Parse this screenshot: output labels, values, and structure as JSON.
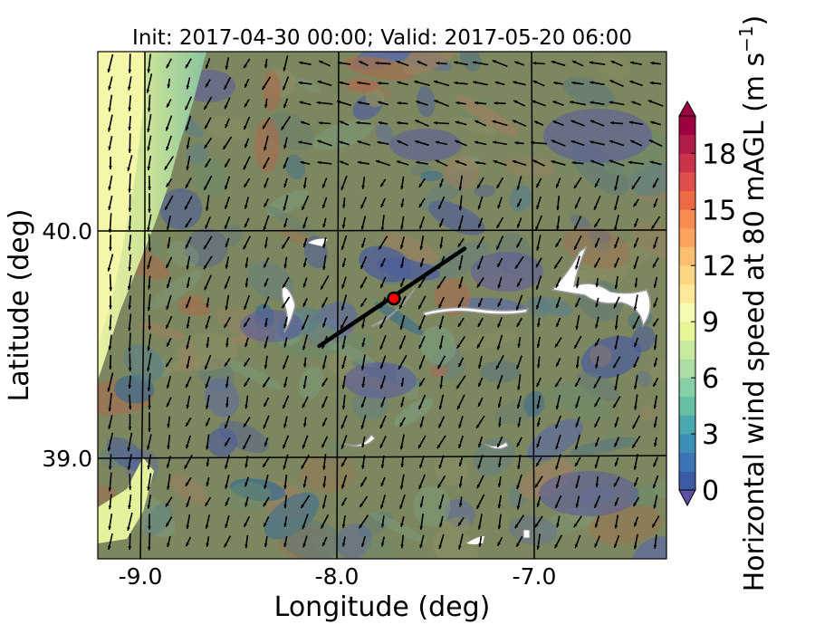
{
  "chart_data": {
    "type": "heatmap",
    "title": "Init: 2017-04-30 00:00; Valid: 2017-05-20 06:00",
    "xlabel": "Longitude (deg)",
    "ylabel": "Latitude (deg)",
    "xlim": [
      -9.25,
      -6.35
    ],
    "ylim": [
      38.55,
      40.79
    ],
    "x_ticks": [
      -9.0,
      -8.0,
      -7.0
    ],
    "x_tick_labels": [
      "-9.0",
      "-8.0",
      "-7.0"
    ],
    "y_ticks": [
      39.0,
      40.0
    ],
    "y_tick_labels": [
      "39.0",
      "40.0"
    ],
    "grid": true,
    "colorbar": {
      "label_main": "Horizontal wind speed at 80 mAGL (m s",
      "label_exp": "−1",
      "label_end": ")",
      "range": [
        0,
        20
      ],
      "ticks": [
        0,
        3,
        6,
        9,
        12,
        15,
        18
      ],
      "tick_labels": [
        "0",
        "3",
        "6",
        "9",
        "12",
        "15",
        "18"
      ],
      "extend": "both",
      "colormap": "Spectral_r"
    },
    "site_marker": {
      "lon": -7.74,
      "lat": 39.7,
      "color": "#ff0000"
    },
    "transect": {
      "start": [
        -8.12,
        39.49
      ],
      "end": [
        -7.38,
        39.92
      ]
    },
    "wind_field_note": "predominantly northerly flow, 1.5–10 m/s"
  }
}
